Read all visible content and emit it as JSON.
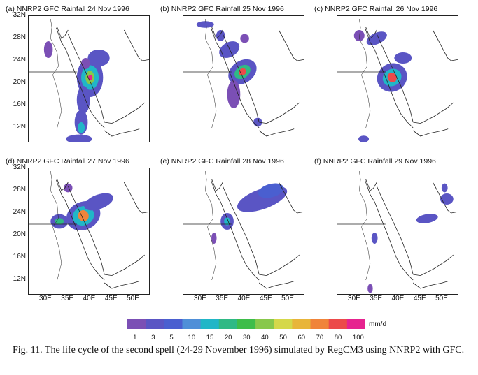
{
  "figure": {
    "panels": [
      {
        "title": "(a) NNRP2 GFC Rainfall 24 Nov 1996"
      },
      {
        "title": "(b) NNRP2 GFC Rainfall 25 Nov 1996"
      },
      {
        "title": "(c) NNRP2 GFC Rainfall 26 Nov 1996"
      },
      {
        "title": "(d) NNRP2 GFC Rainfall 27 Nov 1996"
      },
      {
        "title": "(e) NNRP2 GFC Rainfall 28 Nov 1996"
      },
      {
        "title": "(f) NNRP2 GFC Rainfall 29 Nov 1996"
      }
    ],
    "lat_ticks": [
      "32N",
      "28N",
      "24N",
      "20N",
      "16N",
      "12N"
    ],
    "lon_ticks": [
      "30E",
      "35E",
      "40E",
      "45E",
      "50E"
    ],
    "colorbar": {
      "levels": [
        "1",
        "3",
        "5",
        "10",
        "15",
        "20",
        "30",
        "40",
        "50",
        "60",
        "70",
        "80",
        "100"
      ],
      "colors": [
        "#7b4fb5",
        "#5a55c4",
        "#4a5fd0",
        "#4f8fd8",
        "#21b6c7",
        "#2fb985",
        "#3ebd4a",
        "#88c84b",
        "#d5d84a",
        "#e8b53a",
        "#f0843a",
        "#ec4a4a",
        "#e6238f"
      ],
      "unit": "mm/d"
    },
    "caption": "Fig. 11. The life cycle of the second spell (24-29 November 1996) simulated by RegCM3 using NNRP2 with GFC."
  }
}
